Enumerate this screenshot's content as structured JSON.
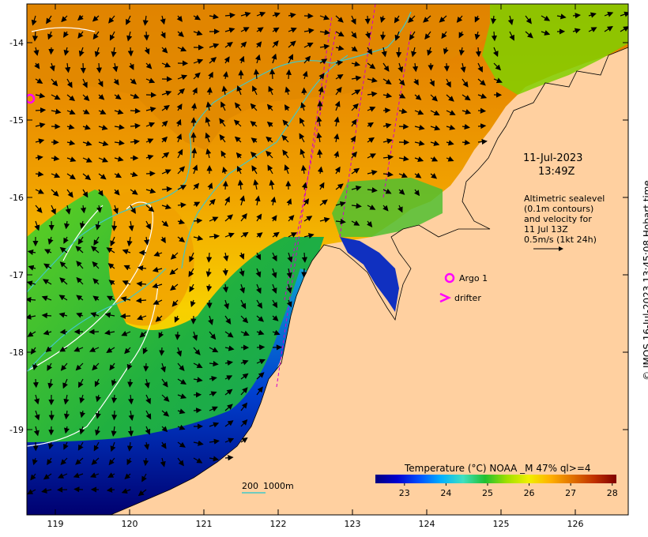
{
  "map": {
    "date": "11-Jul-2023",
    "time": "13:49Z",
    "altimetry_lines": [
      "Altimetric sealevel",
      "(0.1m contours)",
      "and velocity for",
      "11 Jul 13Z",
      "0.5m/s (1kt 24h)"
    ],
    "legend": {
      "argo_label": "Argo 1",
      "drifter_label": "drifter",
      "argo_color": "#ff00ff",
      "drifter_color": "#ff00ff"
    },
    "depth_scale": {
      "label_200": "200",
      "label_1000": "1000m",
      "color": "#40c8c8"
    },
    "colorbar": {
      "title": "Temperature (°C) NOAA _M 47% ql>=4",
      "min": 22.3,
      "max": 28.1,
      "ticks": [
        "23",
        "24",
        "25",
        "26",
        "27",
        "28"
      ],
      "colors": [
        "#000080",
        "#0000d0",
        "#0050ff",
        "#00b0ff",
        "#40e0c0",
        "#20c030",
        "#a0e000",
        "#f0f000",
        "#ffb000",
        "#e07000",
        "#c03000",
        "#800000"
      ]
    },
    "lon_ticks": [
      "119",
      "120",
      "121",
      "122",
      "123",
      "124",
      "125",
      "126"
    ],
    "lat_ticks": [
      "-14",
      "-15",
      "-16",
      "-17",
      "-18",
      "-19"
    ],
    "credit": "© IMOS 16-Jul-2023 13:45:08 Hobart time",
    "colors": {
      "land": "#ffd0a0",
      "arrow": "#000000",
      "track": "#d000d0",
      "isobath_200": "#40c8c8",
      "isobath_1000": "#ffffff"
    }
  }
}
